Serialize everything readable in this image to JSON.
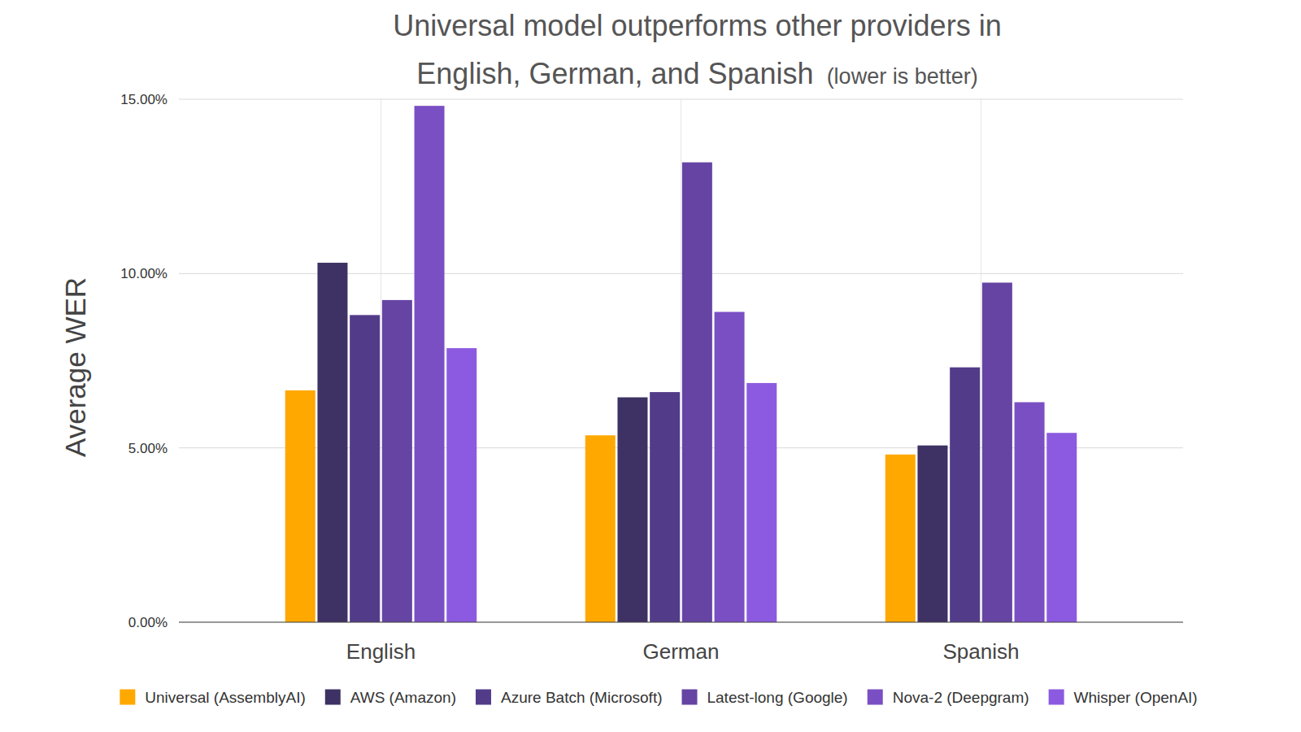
{
  "chart_data": {
    "type": "bar",
    "title": "Universal model outperforms other providers in English, German, and Spanish",
    "subtitle": "(lower is better)",
    "y_label": "Average WER",
    "categories": [
      "English",
      "German",
      "Spanish"
    ],
    "series": [
      {
        "name": "Universal (AssemblyAI)",
        "color": "#ffa800",
        "values": [
          6.65,
          5.36,
          4.81
        ]
      },
      {
        "name": "AWS (Amazon)",
        "color": "#3e3163",
        "values": [
          10.31,
          6.45,
          5.07
        ]
      },
      {
        "name": "Azure Batch (Microsoft)",
        "color": "#523c89",
        "values": [
          8.81,
          6.6,
          7.31
        ]
      },
      {
        "name": "Latest-long (Google)",
        "color": "#6544a3",
        "values": [
          9.24,
          13.19,
          9.74
        ]
      },
      {
        "name": "Nova-2 (Deepgram)",
        "color": "#7a4fc4",
        "values": [
          14.81,
          8.9,
          6.31
        ]
      },
      {
        "name": "Whisper (OpenAI)",
        "color": "#8c5ae0",
        "values": [
          7.86,
          6.86,
          5.43
        ]
      }
    ],
    "ylim": [
      0,
      15
    ],
    "yticks": [
      {
        "value": 0,
        "label": "0.00%"
      },
      {
        "value": 5,
        "label": "5.00%"
      },
      {
        "value": 10,
        "label": "10.00%"
      },
      {
        "value": 15,
        "label": "15.00%"
      }
    ],
    "grid": true,
    "legend": "bottom"
  }
}
